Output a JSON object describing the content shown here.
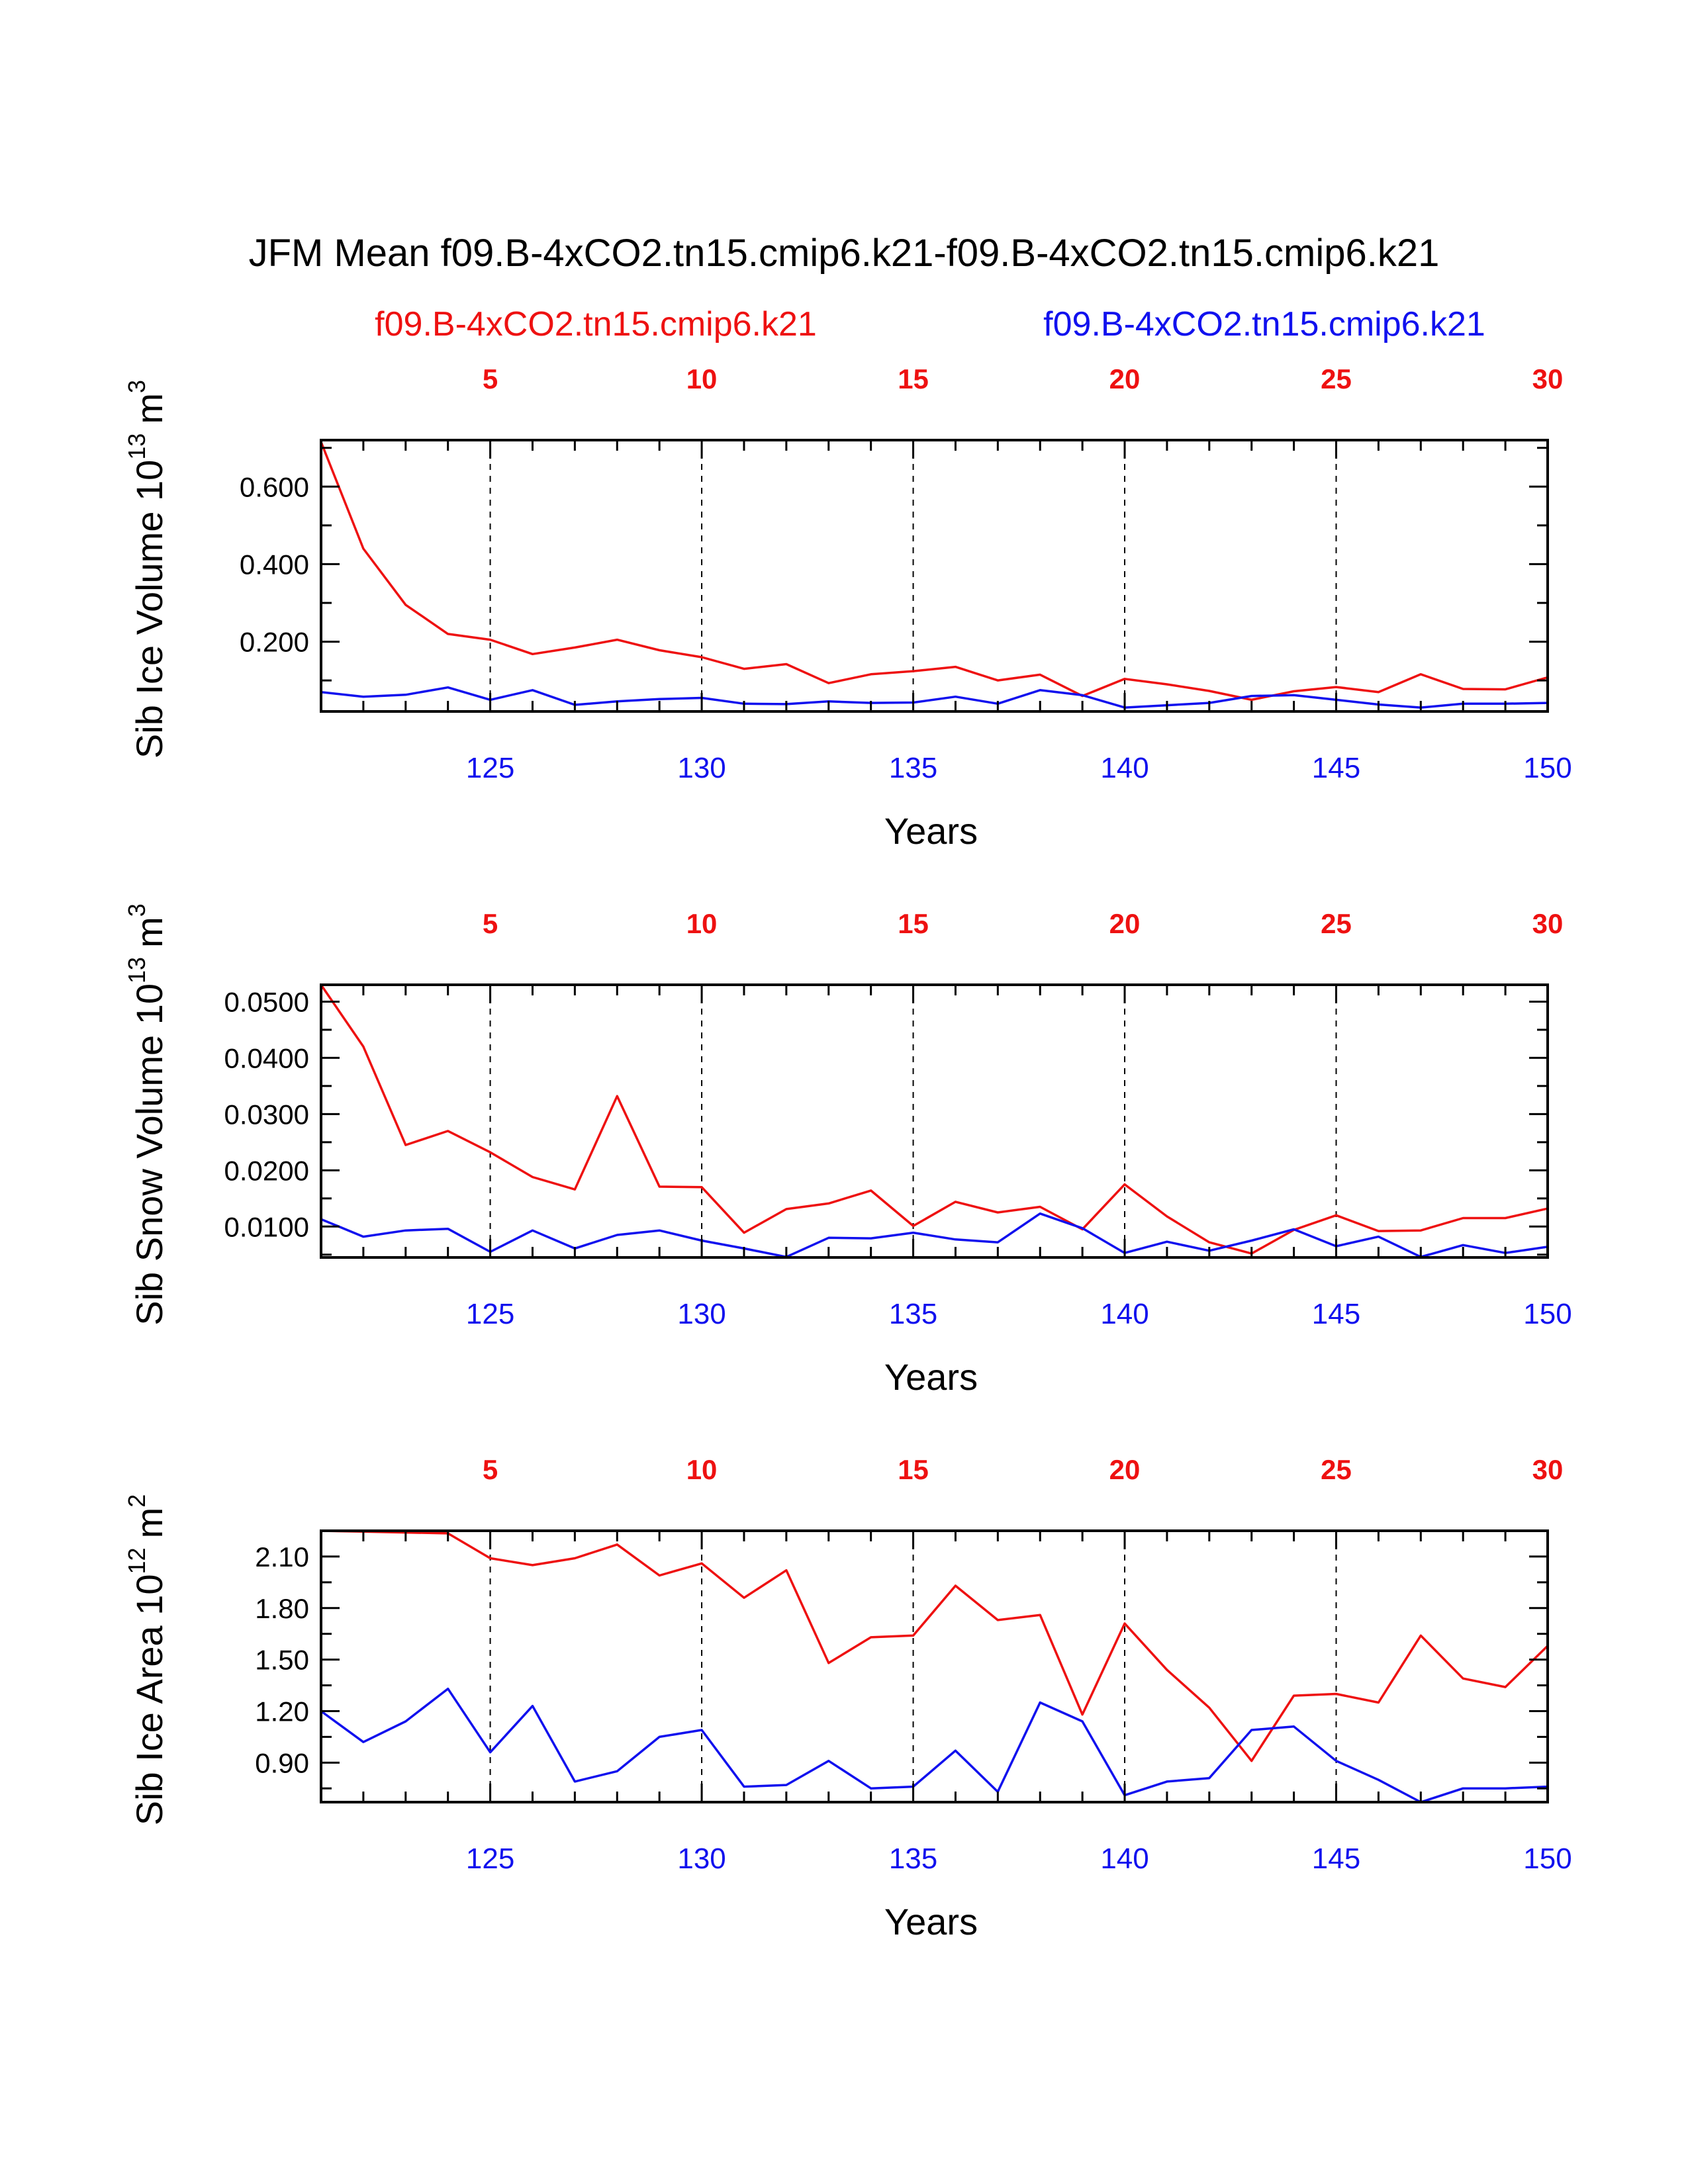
{
  "title": "JFM Mean f09.B-4xCO2.tn15.cmip6.k21-f09.B-4xCO2.tn15.cmip6.k21",
  "legend": {
    "red_label": "f09.B-4xCO2.tn15.cmip6.k21",
    "blue_label": "f09.B-4xCO2.tn15.cmip6.k21"
  },
  "colors": {
    "red": "#ee1111",
    "blue": "#1111ee",
    "axis": "#000000"
  },
  "chart_data": [
    {
      "type": "line",
      "ylabel_main": "Sib Ice Volume 10",
      "ylabel_exp": "13",
      "ylabel_unit": "m",
      "ylabel_unit_exp": "3",
      "xlabel": "Years",
      "xlim": [
        121,
        150
      ],
      "ylim": [
        0.02,
        0.72
      ],
      "yticks": [
        0.2,
        0.4,
        0.6
      ],
      "ytick_labels": [
        "0.200",
        "0.400",
        "0.600"
      ],
      "bottom_ticks": [
        125,
        130,
        135,
        140,
        145,
        150
      ],
      "bottom_tick_labels": [
        "125",
        "130",
        "135",
        "140",
        "145",
        "150"
      ],
      "top_ticks": [
        5,
        10,
        15,
        20,
        25,
        30
      ],
      "top_tick_labels": [
        "5",
        "10",
        "15",
        "20",
        "25",
        "30"
      ],
      "x": [
        121,
        122,
        123,
        124,
        125,
        126,
        127,
        128,
        129,
        130,
        131,
        132,
        133,
        134,
        135,
        136,
        137,
        138,
        139,
        140,
        141,
        142,
        143,
        144,
        145,
        146,
        147,
        148,
        149,
        150
      ],
      "series": [
        {
          "name": "f09.B-4xCO2.tn15.cmip6.k21",
          "color": "red",
          "values": [
            0.715,
            0.44,
            0.295,
            0.22,
            0.205,
            0.168,
            0.185,
            0.205,
            0.178,
            0.16,
            0.13,
            0.142,
            0.093,
            0.116,
            0.124,
            0.135,
            0.1,
            0.115,
            0.06,
            0.104,
            0.09,
            0.073,
            0.05,
            0.072,
            0.083,
            0.07,
            0.116,
            0.078,
            0.077,
            0.108
          ]
        },
        {
          "name": "f09.B-4xCO2.tn15.cmip6.k21",
          "color": "blue",
          "values": [
            0.07,
            0.058,
            0.063,
            0.082,
            0.05,
            0.075,
            0.037,
            0.046,
            0.052,
            0.055,
            0.04,
            0.039,
            0.046,
            0.042,
            0.043,
            0.058,
            0.04,
            0.075,
            0.062,
            0.03,
            0.036,
            0.042,
            0.06,
            0.062,
            0.05,
            0.038,
            0.03,
            0.04,
            0.04,
            0.042
          ]
        }
      ]
    },
    {
      "type": "line",
      "ylabel_main": "Sib Snow Volume 10",
      "ylabel_exp": "13",
      "ylabel_unit": "m",
      "ylabel_unit_exp": "3",
      "xlabel": "Years",
      "xlim": [
        121,
        150
      ],
      "ylim": [
        0.0045,
        0.053
      ],
      "yticks": [
        0.01,
        0.02,
        0.03,
        0.04,
        0.05
      ],
      "ytick_labels": [
        "0.0100",
        "0.0200",
        "0.0300",
        "0.0400",
        "0.0500"
      ],
      "bottom_ticks": [
        125,
        130,
        135,
        140,
        145,
        150
      ],
      "bottom_tick_labels": [
        "125",
        "130",
        "135",
        "140",
        "145",
        "150"
      ],
      "top_ticks": [
        5,
        10,
        15,
        20,
        25,
        30
      ],
      "top_tick_labels": [
        "5",
        "10",
        "15",
        "20",
        "25",
        "30"
      ],
      "x": [
        121,
        122,
        123,
        124,
        125,
        126,
        127,
        128,
        129,
        130,
        131,
        132,
        133,
        134,
        135,
        136,
        137,
        138,
        139,
        140,
        141,
        142,
        143,
        144,
        145,
        146,
        147,
        148,
        149,
        150
      ],
      "series": [
        {
          "name": "f09.B-4xCO2.tn15.cmip6.k21",
          "color": "red",
          "values": [
            0.053,
            0.042,
            0.0245,
            0.027,
            0.0232,
            0.0188,
            0.0166,
            0.0332,
            0.0171,
            0.017,
            0.0089,
            0.0131,
            0.0141,
            0.0164,
            0.0101,
            0.0144,
            0.0125,
            0.0135,
            0.0095,
            0.0175,
            0.0118,
            0.0072,
            0.0052,
            0.0094,
            0.012,
            0.0092,
            0.0093,
            0.0115,
            0.0115,
            0.0132
          ]
        },
        {
          "name": "f09.B-4xCO2.tn15.cmip6.k21",
          "color": "blue",
          "values": [
            0.0113,
            0.0082,
            0.0093,
            0.0096,
            0.0055,
            0.0093,
            0.0061,
            0.0085,
            0.0093,
            0.0075,
            0.0061,
            0.0046,
            0.008,
            0.0079,
            0.0089,
            0.0077,
            0.0072,
            0.0123,
            0.0097,
            0.0053,
            0.0073,
            0.0057,
            0.0075,
            0.0095,
            0.0065,
            0.0082,
            0.0046,
            0.0067,
            0.0053,
            0.0064
          ]
        }
      ]
    },
    {
      "type": "line",
      "ylabel_main": "Sib Ice Area 10",
      "ylabel_exp": "12",
      "ylabel_unit": "m",
      "ylabel_unit_exp": "2",
      "xlabel": "Years",
      "xlim": [
        121,
        150
      ],
      "ylim": [
        0.67,
        2.25
      ],
      "yticks": [
        0.9,
        1.2,
        1.5,
        1.8,
        2.1
      ],
      "ytick_labels": [
        "0.90",
        "1.20",
        "1.50",
        "1.80",
        "2.10"
      ],
      "bottom_ticks": [
        125,
        130,
        135,
        140,
        145,
        150
      ],
      "bottom_tick_labels": [
        "125",
        "130",
        "135",
        "140",
        "145",
        "150"
      ],
      "top_ticks": [
        5,
        10,
        15,
        20,
        25,
        30
      ],
      "top_tick_labels": [
        "5",
        "10",
        "15",
        "20",
        "25",
        "30"
      ],
      "x": [
        121,
        122,
        123,
        124,
        125,
        126,
        127,
        128,
        129,
        130,
        131,
        132,
        133,
        134,
        135,
        136,
        137,
        138,
        139,
        140,
        141,
        142,
        143,
        144,
        145,
        146,
        147,
        148,
        149,
        150
      ],
      "series": [
        {
          "name": "f09.B-4xCO2.tn15.cmip6.k21",
          "color": "red",
          "values": [
            2.25,
            2.245,
            2.24,
            2.235,
            2.09,
            2.05,
            2.09,
            2.17,
            1.99,
            2.06,
            1.86,
            2.02,
            1.48,
            1.63,
            1.64,
            1.93,
            1.73,
            1.76,
            1.18,
            1.71,
            1.44,
            1.22,
            0.91,
            1.29,
            1.3,
            1.25,
            1.64,
            1.39,
            1.34,
            1.58
          ]
        },
        {
          "name": "f09.B-4xCO2.tn15.cmip6.k21",
          "color": "blue",
          "values": [
            1.2,
            1.02,
            1.14,
            1.33,
            0.96,
            1.23,
            0.79,
            0.85,
            1.05,
            1.09,
            0.76,
            0.77,
            0.91,
            0.75,
            0.76,
            0.97,
            0.73,
            1.25,
            1.14,
            0.71,
            0.79,
            0.81,
            1.09,
            1.11,
            0.91,
            0.8,
            0.67,
            0.75,
            0.75,
            0.76
          ]
        }
      ]
    }
  ]
}
